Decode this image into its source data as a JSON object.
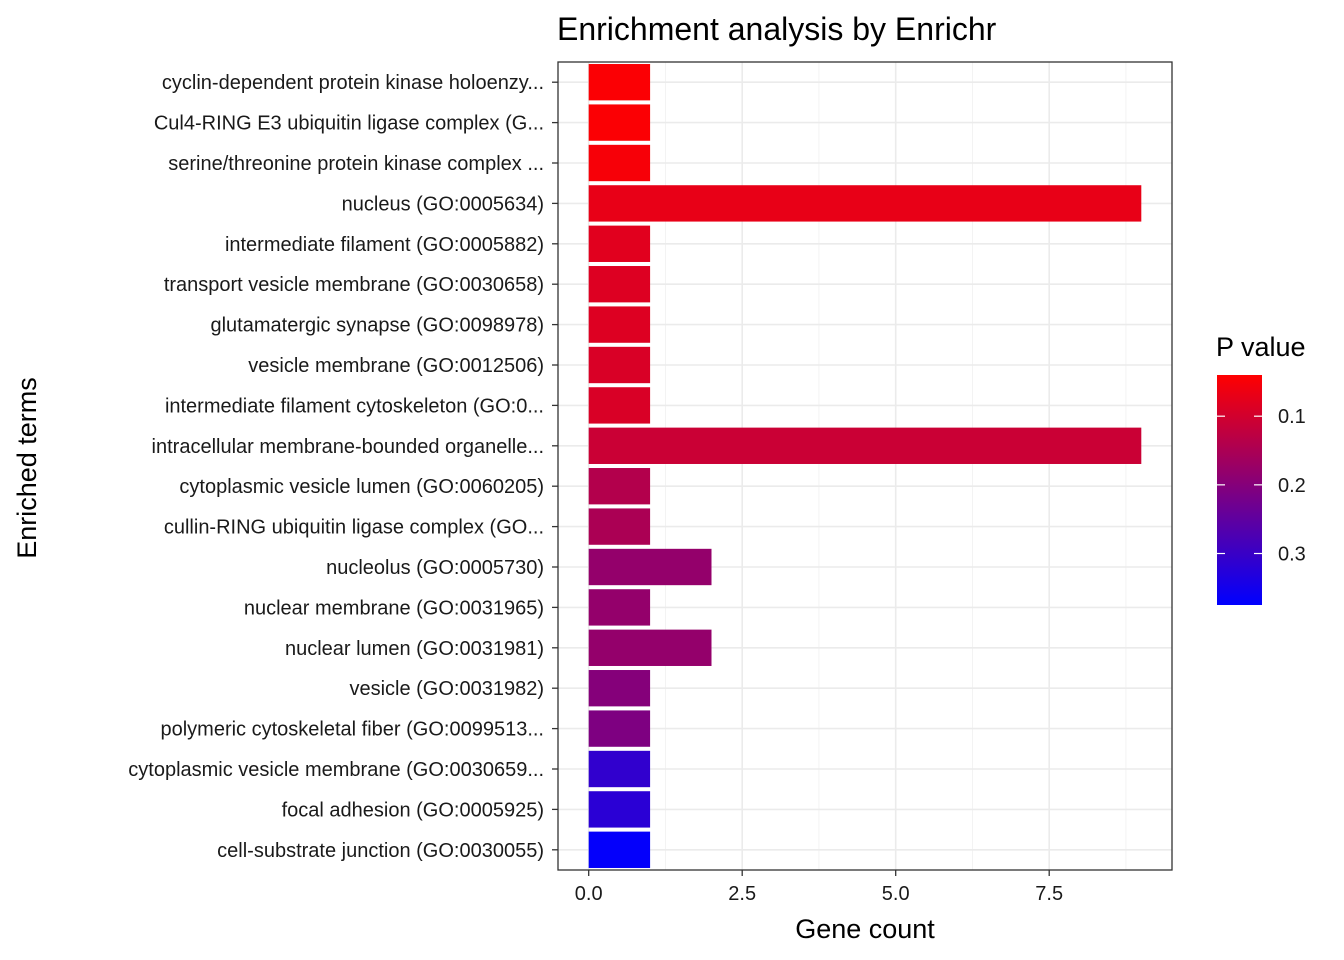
{
  "chart_data": {
    "type": "bar",
    "orientation": "horizontal",
    "title": "Enrichment analysis by Enrichr",
    "xlabel": "Gene count",
    "ylabel": "Enriched terms",
    "xlim": [
      -0.5,
      9.5
    ],
    "xticks": [
      0.0,
      2.5,
      5.0,
      7.5
    ],
    "xtick_labels": [
      "0.0",
      "2.5",
      "5.0",
      "7.5"
    ],
    "grid": true,
    "legend": {
      "title": "P value",
      "position": "right",
      "range": [
        0.04,
        0.375
      ],
      "ticks": [
        0.1,
        0.2,
        0.3
      ],
      "tick_labels": [
        "0.1",
        "0.2",
        "0.3"
      ],
      "color_low": "#FF0000",
      "color_high": "#0000FF"
    },
    "categories": [
      "cyclin-dependent protein kinase holoenzy...",
      "Cul4-RING E3 ubiquitin ligase complex (G...",
      "serine/threonine protein kinase complex ...",
      "nucleus (GO:0005634)",
      "intermediate filament (GO:0005882)",
      "transport vesicle membrane (GO:0030658)",
      "glutamatergic synapse (GO:0098978)",
      "vesicle membrane (GO:0012506)",
      "intermediate filament cytoskeleton (GO:0...",
      "intracellular membrane-bounded organelle...",
      "cytoplasmic vesicle lumen (GO:0060205)",
      "cullin-RING ubiquitin ligase complex (GO...",
      "nucleolus (GO:0005730)",
      "nuclear membrane (GO:0031965)",
      "nuclear lumen (GO:0031981)",
      "vesicle (GO:0031982)",
      "polymeric cytoskeletal fiber (GO:0099513...",
      "cytoplasmic vesicle membrane (GO:0030659...",
      "focal adhesion (GO:0005925)",
      "cell-substrate junction (GO:0030055)"
    ],
    "values": [
      1,
      1,
      1,
      9,
      1,
      1,
      1,
      1,
      1,
      9,
      1,
      1,
      2,
      1,
      2,
      1,
      1,
      1,
      1,
      1
    ],
    "p_values": [
      0.045,
      0.045,
      0.05,
      0.07,
      0.08,
      0.085,
      0.085,
      0.09,
      0.09,
      0.11,
      0.14,
      0.15,
      0.18,
      0.18,
      0.18,
      0.2,
      0.21,
      0.31,
      0.32,
      0.37
    ]
  }
}
